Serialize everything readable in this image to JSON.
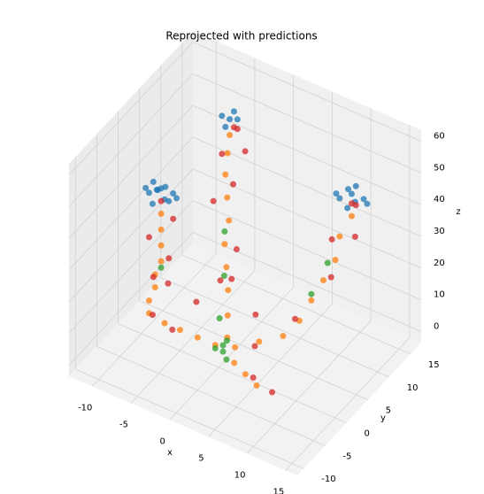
{
  "chart_data": {
    "type": "scatter3d",
    "title": "Reprojected with predictions",
    "xlabel": "x",
    "ylabel": "y",
    "zlabel": "z",
    "xlim": [
      -13,
      16.5
    ],
    "ylim": [
      -11.5,
      17.5
    ],
    "zlim": [
      -3.5,
      63.5
    ],
    "xticks": [
      -10,
      -5,
      0,
      5,
      10,
      15
    ],
    "yticks": [
      -10,
      -5,
      0,
      5,
      10,
      15
    ],
    "zticks": [
      0,
      10,
      20,
      30,
      40,
      50,
      60
    ],
    "grid": true,
    "series": [
      {
        "color": "#1f77b4",
        "x": [
          -9,
          -8,
          -7,
          -9,
          -8,
          -7,
          -10,
          -8,
          -9,
          -7,
          -6,
          -8,
          9,
          10,
          11,
          10,
          9,
          11,
          10,
          8,
          12,
          -3,
          -2,
          -3,
          -4,
          -3
        ],
        "y": [
          0,
          1,
          2,
          2,
          0,
          0,
          1,
          2,
          1,
          1,
          1,
          -1,
          12,
          13,
          14,
          12,
          14,
          12,
          14,
          13,
          13,
          8,
          8,
          7,
          8,
          9
        ],
        "z": [
          42,
          43,
          41,
          40,
          44,
          42,
          41,
          42,
          44,
          40,
          42,
          41,
          42,
          43,
          41,
          40,
          42,
          43,
          44,
          41,
          42,
          60,
          61,
          59,
          60,
          61
        ]
      },
      {
        "color": "#ff7f0e",
        "x": [
          -1,
          -3,
          -5,
          -7,
          -9,
          -9,
          -8.5,
          -8.5,
          -8,
          -8,
          -8,
          -8,
          0,
          -0.5,
          -1,
          -1.5,
          -2,
          -2,
          -2.5,
          -3,
          -3,
          -3,
          1,
          3,
          5,
          6,
          7,
          8,
          9,
          9,
          10,
          2,
          4,
          6
        ],
        "y": [
          1,
          0.5,
          0,
          0,
          0,
          0,
          0.5,
          0.5,
          1,
          1,
          1,
          1,
          2,
          3,
          4,
          4.5,
          5,
          6,
          6.5,
          7,
          7.5,
          8,
          2,
          4,
          6,
          8,
          9,
          10,
          11,
          12,
          13,
          0,
          -1,
          -2
        ],
        "z": [
          1,
          2,
          3,
          3,
          4,
          8,
          12,
          16,
          20,
          25,
          30,
          35,
          3,
          8,
          14,
          20,
          26,
          32,
          38,
          44,
          50,
          55,
          1,
          2,
          3,
          6,
          12,
          18,
          24,
          30,
          36,
          0,
          0,
          0
        ]
      },
      {
        "color": "#2ca02c",
        "x": [
          0,
          0,
          0.5,
          -1,
          -1.5,
          -2,
          7,
          8,
          -8,
          -1,
          1
        ],
        "y": [
          1,
          1,
          1,
          2,
          4,
          5,
          9,
          11,
          1,
          1,
          0
        ],
        "z": [
          0,
          2,
          4,
          8,
          18,
          30,
          14,
          22,
          18,
          0,
          0
        ]
      },
      {
        "color": "#d62728",
        "x": [
          -6,
          -8,
          -9,
          -7,
          -9,
          -7,
          -6,
          -4,
          -2,
          -1,
          -4,
          -2,
          -4,
          -1,
          -3,
          2,
          3,
          5,
          8,
          6,
          9,
          8,
          11,
          10,
          -8,
          10,
          -2,
          0
        ],
        "y": [
          0,
          -1,
          1,
          1,
          0,
          2,
          -1,
          2,
          4,
          6,
          6,
          7,
          8,
          8,
          9,
          5,
          3,
          -1,
          -2,
          7,
          10,
          12,
          12,
          14,
          1,
          13,
          8,
          3
        ],
        "z": [
          2,
          6,
          14,
          22,
          28,
          33,
          18,
          10,
          16,
          24,
          36,
          42,
          48,
          52,
          56,
          8,
          2,
          0,
          0,
          8,
          20,
          28,
          32,
          38,
          39,
          40,
          58,
          20
        ]
      }
    ]
  }
}
